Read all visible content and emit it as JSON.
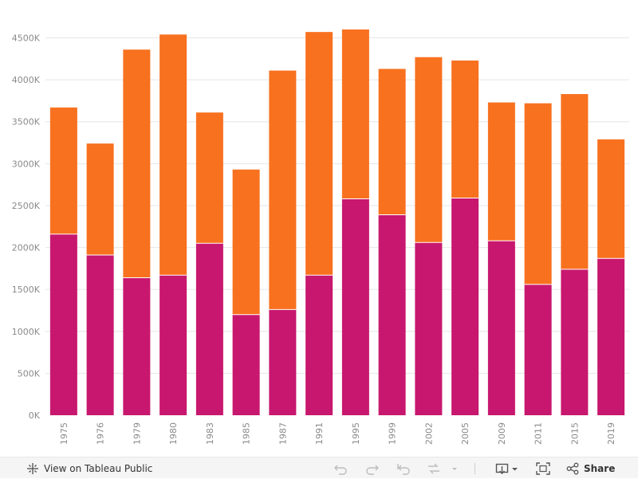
{
  "chart_data": {
    "type": "bar",
    "stacked": true,
    "categories": [
      "1975",
      "1976",
      "1979",
      "1980",
      "1983",
      "1985",
      "1987",
      "1991",
      "1995",
      "1999",
      "2002",
      "2005",
      "2009",
      "2011",
      "2015",
      "2019"
    ],
    "series": [
      {
        "color": "#c8176e",
        "values": [
          2160000,
          1910000,
          1640000,
          1670000,
          2050000,
          1200000,
          1260000,
          1670000,
          2580000,
          2390000,
          2060000,
          2590000,
          2080000,
          1560000,
          1740000,
          1870000
        ]
      },
      {
        "color": "#f8711f",
        "values": [
          1510000,
          1330000,
          2720000,
          2870000,
          1560000,
          1730000,
          2850000,
          2900000,
          2020000,
          1740000,
          2210000,
          1640000,
          1650000,
          2160000,
          2090000,
          1420000
        ]
      }
    ],
    "ylim": [
      0,
      4600000
    ],
    "yticks": [
      0,
      500000,
      1000000,
      1500000,
      2000000,
      2500000,
      3000000,
      3500000,
      4000000,
      4500000
    ],
    "ytick_labels": [
      "0K",
      "500K",
      "1000K",
      "1500K",
      "2000K",
      "2500K",
      "3000K",
      "3500K",
      "4000K",
      "4500K"
    ],
    "grid": true,
    "xlabel": "",
    "ylabel": ""
  },
  "toolbar": {
    "view_label": "View on Tableau Public",
    "share_label": "Share",
    "icons": [
      "tableau-logo-icon",
      "undo-icon",
      "redo-icon",
      "revert-icon",
      "refresh-icon",
      "pause-dropdown-icon",
      "download-icon",
      "fullscreen-icon",
      "share-icon"
    ]
  }
}
